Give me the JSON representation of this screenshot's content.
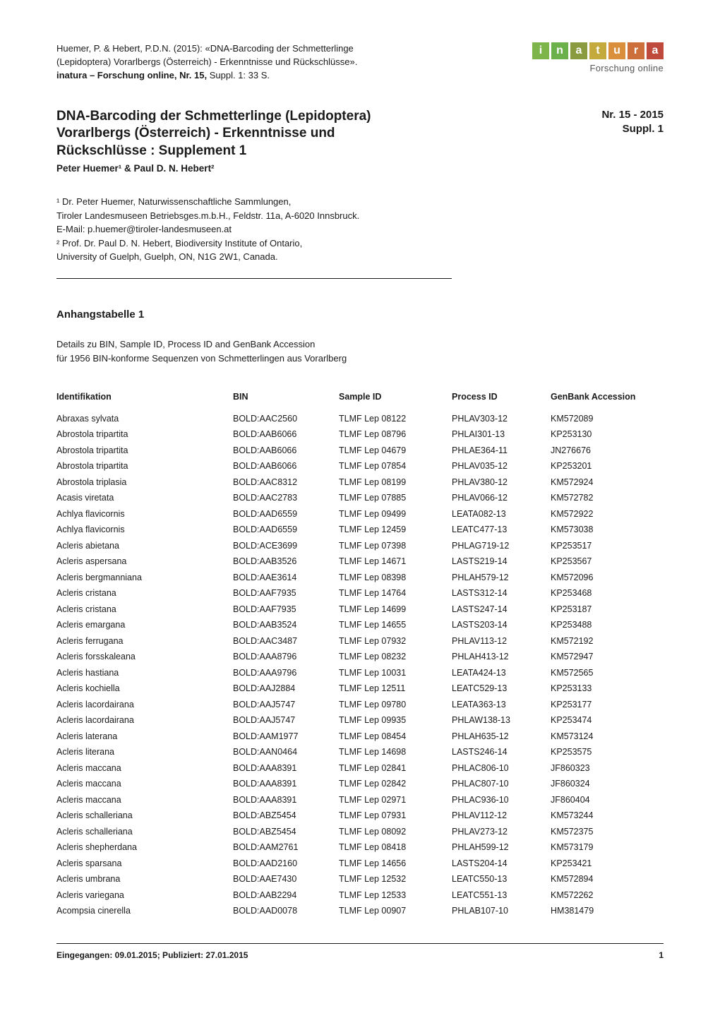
{
  "citation": {
    "line1": "Huemer, P. & Hebert, P.D.N. (2015): «DNA-Barcoding der Schmetterlinge",
    "line2": "(Lepidoptera) Vorarlbergs (Österreich) -  Erkenntnisse und Rückschlüsse».",
    "line3_bold": "inatura – Forschung online, Nr. 15,",
    "line3_rest": " Suppl. 1: 33 S."
  },
  "logo": {
    "letters": [
      "i",
      "n",
      "a",
      "t",
      "u",
      "r",
      "a"
    ],
    "sub": "Forschung online"
  },
  "title": {
    "l1": "DNA-Barcoding der Schmetterlinge (Lepidoptera)",
    "l2": "Vorarlbergs (Österreich) -  Erkenntnisse und",
    "l3": "Rückschlüsse : Supplement 1"
  },
  "authors": "Peter Huemer¹ & Paul D. N. Hebert²",
  "issue": {
    "l1": "Nr. 15 - 2015",
    "l2": "Suppl. 1"
  },
  "affil": {
    "a1": "¹ Dr. Peter Huemer, Naturwissenschaftliche Sammlungen,",
    "a2": "Tiroler Landesmuseen Betriebsges.m.b.H., Feldstr. 11a, A-6020 Innsbruck.",
    "a3": "E-Mail: p.huemer@tiroler-landesmuseen.at",
    "a4": "² Prof. Dr. Paul D. N. Hebert, Biodiversity Institute of Ontario,",
    "a5": "University of Guelph, Guelph, ON, N1G 2W1, Canada."
  },
  "section": {
    "heading": "Anhangstabelle 1",
    "sub1": "Details zu BIN, Sample ID, Process ID and GenBank Accession",
    "sub2": "für 1956 BIN-konforme Sequenzen von Schmetterlingen aus Vorarlberg"
  },
  "table": {
    "headers": [
      "Identifikation",
      "BIN",
      "Sample ID",
      "Process ID",
      "GenBank Accession"
    ],
    "rows": [
      [
        "Abraxas sylvata",
        "BOLD:AAC2560",
        "TLMF Lep 08122",
        "PHLAV303-12",
        "KM572089"
      ],
      [
        "Abrostola tripartita",
        "BOLD:AAB6066",
        "TLMF Lep 08796",
        "PHLAI301-13",
        "KP253130"
      ],
      [
        "Abrostola tripartita",
        "BOLD:AAB6066",
        "TLMF Lep 04679",
        "PHLAE364-11",
        "JN276676"
      ],
      [
        "Abrostola tripartita",
        "BOLD:AAB6066",
        "TLMF Lep 07854",
        "PHLAV035-12",
        "KP253201"
      ],
      [
        "Abrostola triplasia",
        "BOLD:AAC8312",
        "TLMF Lep 08199",
        "PHLAV380-12",
        "KM572924"
      ],
      [
        "Acasis viretata",
        "BOLD:AAC2783",
        "TLMF Lep 07885",
        "PHLAV066-12",
        "KM572782"
      ],
      [
        "Achlya flavicornis",
        "BOLD:AAD6559",
        "TLMF Lep 09499",
        "LEATA082-13",
        "KM572922"
      ],
      [
        "Achlya flavicornis",
        "BOLD:AAD6559",
        "TLMF Lep 12459",
        "LEATC477-13",
        "KM573038"
      ],
      [
        "Acleris abietana",
        "BOLD:ACE3699",
        "TLMF Lep 07398",
        "PHLAG719-12",
        "KP253517"
      ],
      [
        "Acleris aspersana",
        "BOLD:AAB3526",
        "TLMF Lep 14671",
        "LASTS219-14",
        "KP253567"
      ],
      [
        "Acleris bergmanniana",
        "BOLD:AAE3614",
        "TLMF Lep 08398",
        "PHLAH579-12",
        "KM572096"
      ],
      [
        "Acleris cristana",
        "BOLD:AAF7935",
        "TLMF Lep 14764",
        "LASTS312-14",
        "KP253468"
      ],
      [
        "Acleris cristana",
        "BOLD:AAF7935",
        "TLMF Lep 14699",
        "LASTS247-14",
        "KP253187"
      ],
      [
        "Acleris emargana",
        "BOLD:AAB3524",
        "TLMF Lep 14655",
        "LASTS203-14",
        "KP253488"
      ],
      [
        "Acleris ferrugana",
        "BOLD:AAC3487",
        "TLMF Lep 07932",
        "PHLAV113-12",
        "KM572192"
      ],
      [
        "Acleris forsskaleana",
        "BOLD:AAA8796",
        "TLMF Lep 08232",
        "PHLAH413-12",
        "KM572947"
      ],
      [
        "Acleris hastiana",
        "BOLD:AAA9796",
        "TLMF Lep 10031",
        "LEATA424-13",
        "KM572565"
      ],
      [
        "Acleris kochiella",
        "BOLD:AAJ2884",
        "TLMF Lep 12511",
        "LEATC529-13",
        "KP253133"
      ],
      [
        "Acleris lacordairana",
        "BOLD:AAJ5747",
        "TLMF Lep 09780",
        "LEATA363-13",
        "KP253177"
      ],
      [
        "Acleris lacordairana",
        "BOLD:AAJ5747",
        "TLMF Lep 09935",
        "PHLAW138-13",
        "KP253474"
      ],
      [
        "Acleris laterana",
        "BOLD:AAM1977",
        "TLMF Lep 08454",
        "PHLAH635-12",
        "KM573124"
      ],
      [
        "Acleris literana",
        "BOLD:AAN0464",
        "TLMF Lep 14698",
        "LASTS246-14",
        "KP253575"
      ],
      [
        "Acleris maccana",
        "BOLD:AAA8391",
        "TLMF Lep 02841",
        "PHLAC806-10",
        "JF860323"
      ],
      [
        "Acleris maccana",
        "BOLD:AAA8391",
        "TLMF Lep 02842",
        "PHLAC807-10",
        "JF860324"
      ],
      [
        "Acleris maccana",
        "BOLD:AAA8391",
        "TLMF Lep 02971",
        "PHLAC936-10",
        "JF860404"
      ],
      [
        "Acleris schalleriana",
        "BOLD:ABZ5454",
        "TLMF Lep 07931",
        "PHLAV112-12",
        "KM573244"
      ],
      [
        "Acleris schalleriana",
        "BOLD:ABZ5454",
        "TLMF Lep 08092",
        "PHLAV273-12",
        "KM572375"
      ],
      [
        "Acleris shepherdana",
        "BOLD:AAM2761",
        "TLMF Lep 08418",
        "PHLAH599-12",
        "KM573179"
      ],
      [
        "Acleris sparsana",
        "BOLD:AAD2160",
        "TLMF Lep 14656",
        "LASTS204-14",
        "KP253421"
      ],
      [
        "Acleris umbrana",
        "BOLD:AAE7430",
        "TLMF Lep 12532",
        "LEATC550-13",
        "KM572894"
      ],
      [
        "Acleris variegana",
        "BOLD:AAB2294",
        "TLMF Lep 12533",
        "LEATC551-13",
        "KM572262"
      ],
      [
        "Acompsia cinerella",
        "BOLD:AAD0078",
        "TLMF Lep 00907",
        "PHLAB107-10",
        "HM381479"
      ]
    ]
  },
  "footer": {
    "left": "Eingegangen: 09.01.2015; Publiziert: 27.01.2015",
    "page": "1"
  }
}
